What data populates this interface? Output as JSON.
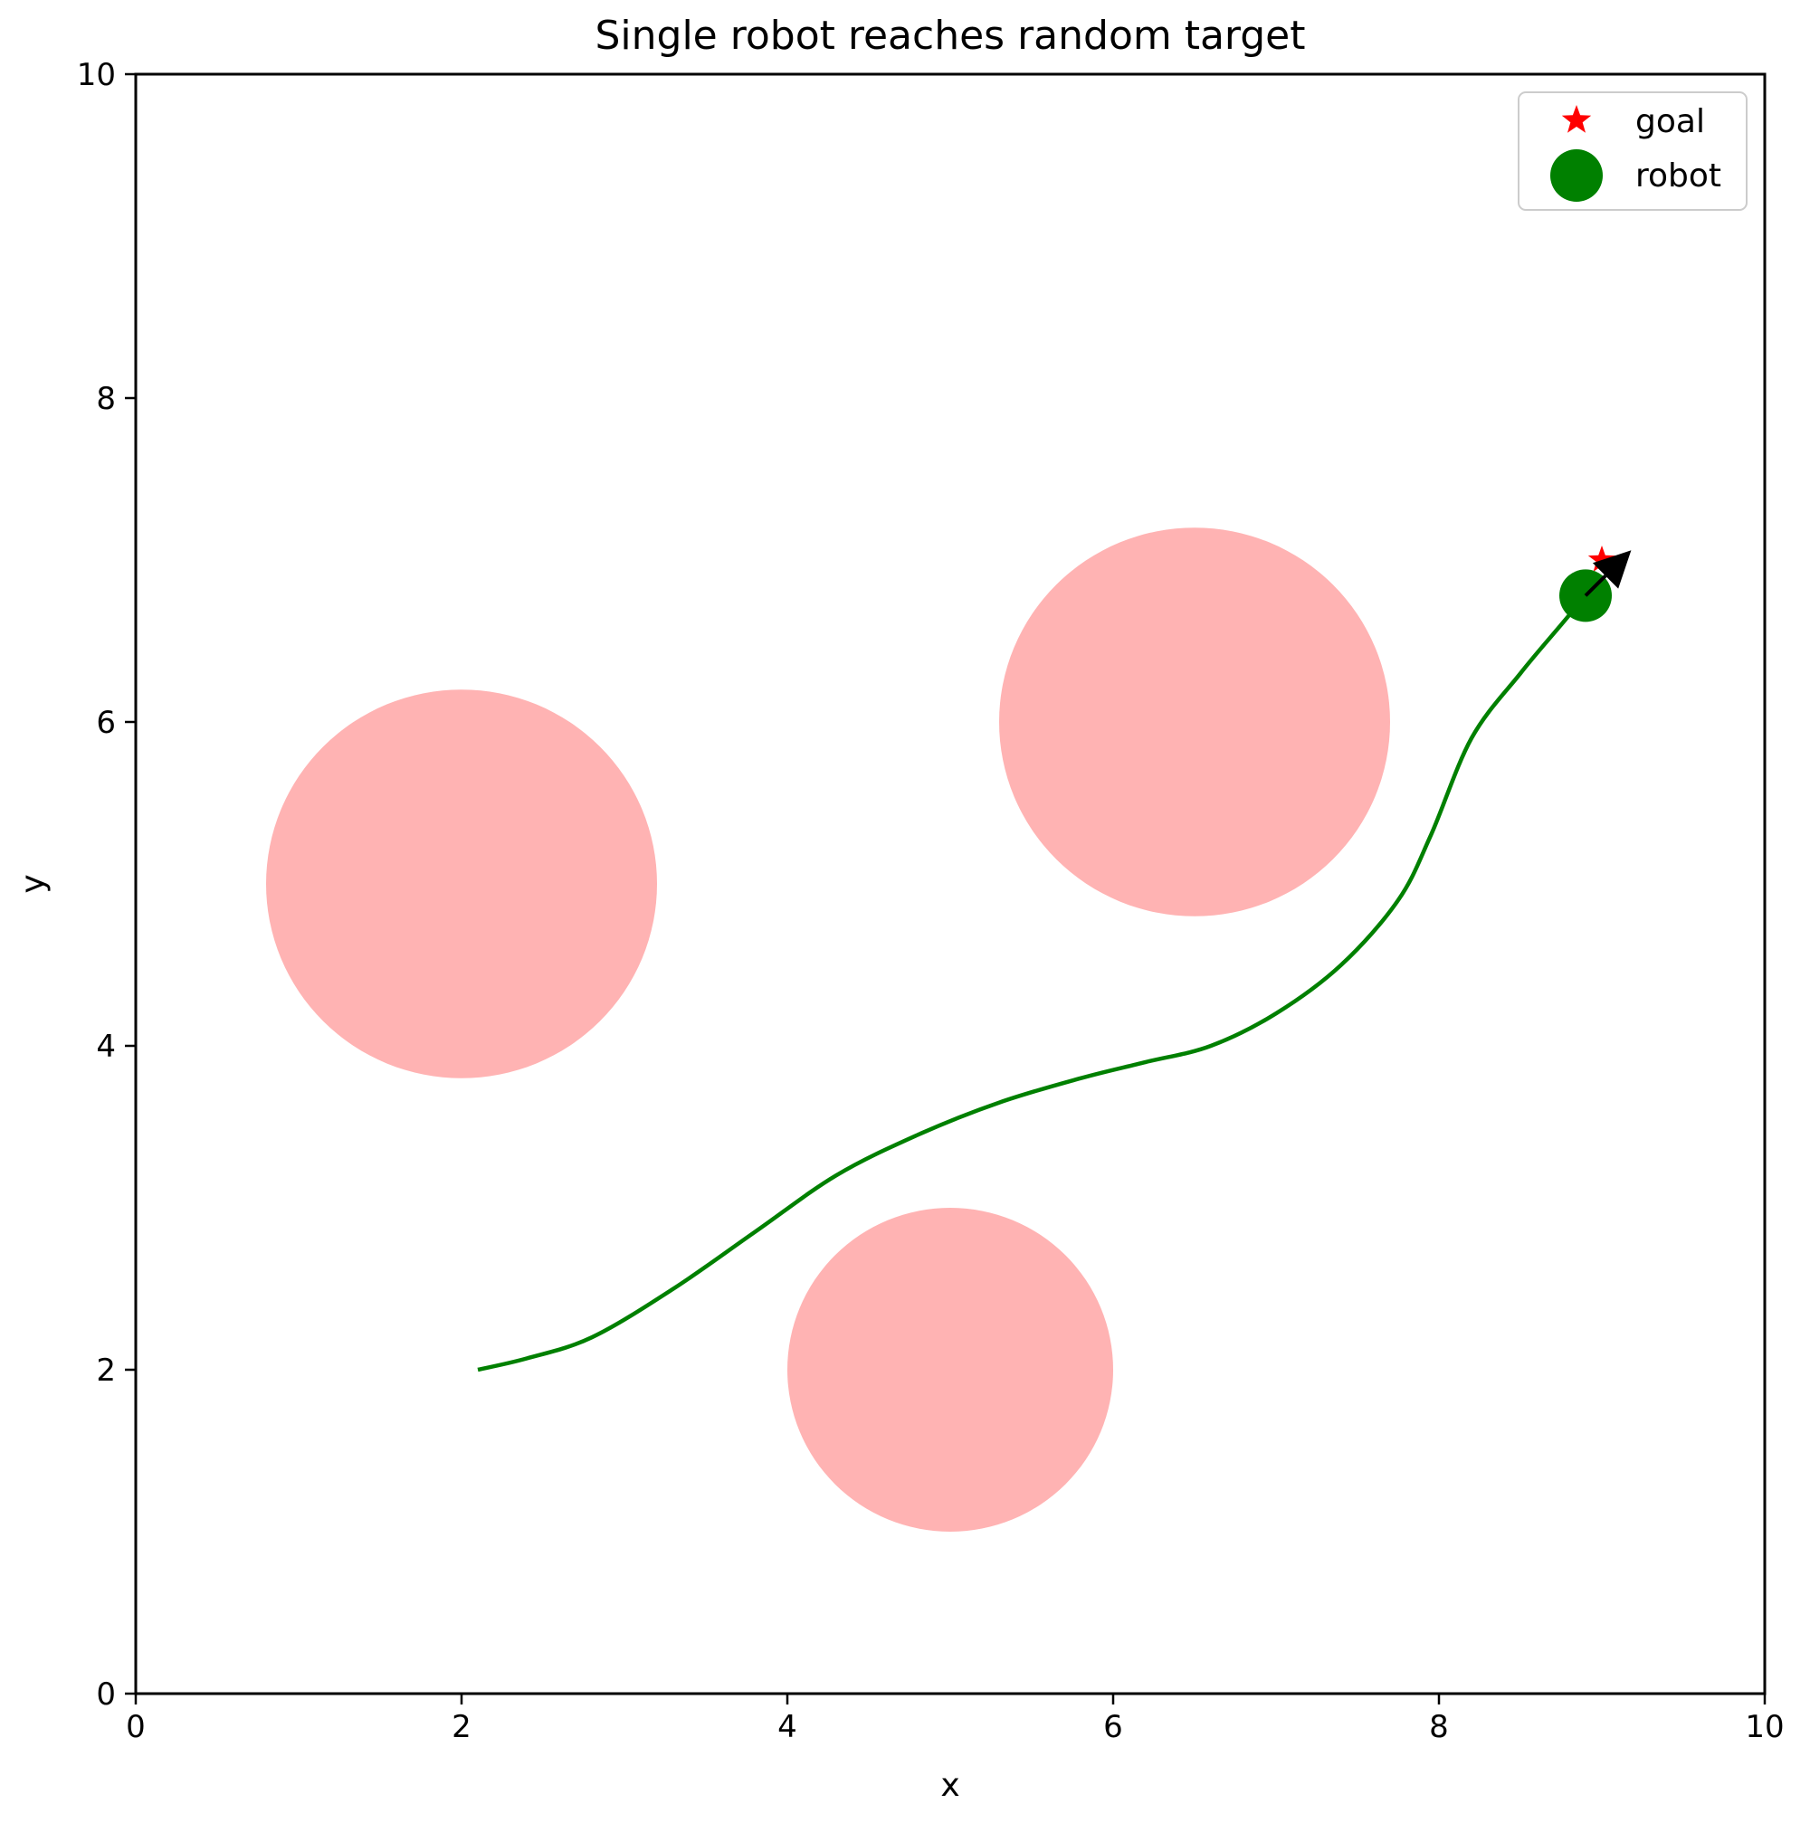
{
  "chart_data": {
    "type": "scatter",
    "title": "Single robot reaches random target",
    "xlabel": "x",
    "ylabel": "y",
    "xlim": [
      0,
      10
    ],
    "ylim": [
      0,
      10
    ],
    "xticks": [
      0,
      2,
      4,
      6,
      8,
      10
    ],
    "yticks": [
      0,
      2,
      4,
      6,
      8,
      10
    ],
    "grid": false,
    "obstacles": [
      {
        "cx": 2.0,
        "cy": 5.0,
        "r": 1.2
      },
      {
        "cx": 6.5,
        "cy": 6.0,
        "r": 1.2
      },
      {
        "cx": 5.0,
        "cy": 2.0,
        "r": 1.0
      }
    ],
    "obstacle_color": "#ffb3b3",
    "trajectory": {
      "color": "#008000",
      "x": [
        2.1,
        2.4,
        2.8,
        3.3,
        3.8,
        4.3,
        4.8,
        5.3,
        5.8,
        6.2,
        6.6,
        7.0,
        7.4,
        7.75,
        7.95,
        8.2,
        8.5,
        8.75,
        8.9
      ],
      "y": [
        2.0,
        2.07,
        2.2,
        2.5,
        2.85,
        3.2,
        3.45,
        3.65,
        3.8,
        3.9,
        4.0,
        4.2,
        4.5,
        4.9,
        5.3,
        5.9,
        6.3,
        6.6,
        6.78
      ]
    },
    "goal": {
      "x": 9.0,
      "y": 7.0,
      "color": "#ff0000",
      "marker": "star"
    },
    "robot": {
      "x": 8.9,
      "y": 6.78,
      "color": "#008000",
      "marker": "circle"
    },
    "heading_arrow": {
      "x": 8.9,
      "y": 6.78,
      "dx": 0.28,
      "dy": 0.28,
      "color": "#000000"
    },
    "legend": {
      "position": "top-right",
      "entries": [
        {
          "label": "goal",
          "marker": "star",
          "color": "#ff0000"
        },
        {
          "label": "robot",
          "marker": "circle",
          "color": "#008000"
        }
      ]
    }
  }
}
